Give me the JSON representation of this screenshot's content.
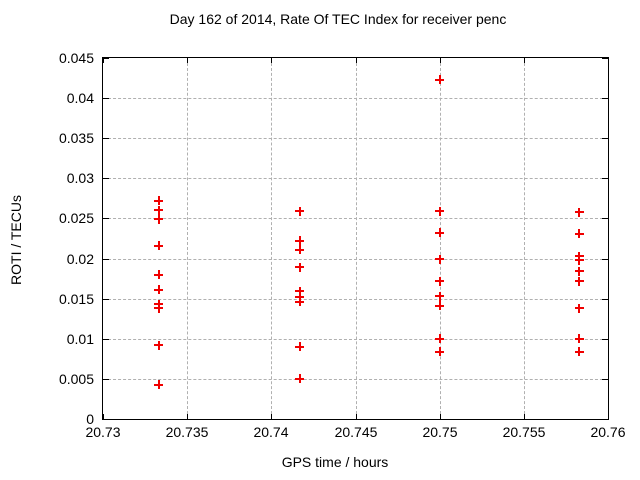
{
  "chart_data": {
    "type": "scatter",
    "title": "Day 162 of 2014, Rate Of TEC Index for receiver penc",
    "xlabel": "GPS time / hours",
    "ylabel": "ROTI / TECUs",
    "xlim": [
      20.73,
      20.76
    ],
    "ylim": [
      0,
      0.045
    ],
    "grid": true,
    "legend": false,
    "marker": "plus",
    "marker_color": "#f00000",
    "grid_color": "#b0b0b0",
    "axis_color": "#000000",
    "xticks": [
      {
        "value": 20.73,
        "label": "20.73"
      },
      {
        "value": 20.735,
        "label": "20.735"
      },
      {
        "value": 20.74,
        "label": "20.74"
      },
      {
        "value": 20.745,
        "label": "20.745"
      },
      {
        "value": 20.75,
        "label": "20.75"
      },
      {
        "value": 20.755,
        "label": "20.755"
      },
      {
        "value": 20.76,
        "label": "20.76"
      }
    ],
    "yticks": [
      {
        "value": 0,
        "label": "0"
      },
      {
        "value": 0.005,
        "label": "0.005"
      },
      {
        "value": 0.01,
        "label": "0.01"
      },
      {
        "value": 0.015,
        "label": "0.015"
      },
      {
        "value": 0.02,
        "label": "0.02"
      },
      {
        "value": 0.025,
        "label": "0.025"
      },
      {
        "value": 0.03,
        "label": "0.03"
      },
      {
        "value": 0.035,
        "label": "0.035"
      },
      {
        "value": 0.04,
        "label": "0.04"
      },
      {
        "value": 0.045,
        "label": "0.045"
      }
    ],
    "series": [
      {
        "name": "ROTI",
        "points": [
          [
            20.7333,
            0.0272
          ],
          [
            20.7333,
            0.026
          ],
          [
            20.7333,
            0.0249
          ],
          [
            20.7333,
            0.0216
          ],
          [
            20.7333,
            0.018
          ],
          [
            20.7333,
            0.0161
          ],
          [
            20.7333,
            0.0143
          ],
          [
            20.7333,
            0.0138
          ],
          [
            20.7333,
            0.0092
          ],
          [
            20.7333,
            0.0043
          ],
          [
            20.7417,
            0.0259
          ],
          [
            20.7417,
            0.0222
          ],
          [
            20.7417,
            0.0211
          ],
          [
            20.7417,
            0.0189
          ],
          [
            20.7417,
            0.0159
          ],
          [
            20.7417,
            0.0152
          ],
          [
            20.7417,
            0.0146
          ],
          [
            20.7417,
            0.009
          ],
          [
            20.7417,
            0.005
          ],
          [
            20.75,
            0.0423
          ],
          [
            20.75,
            0.0259
          ],
          [
            20.75,
            0.0232
          ],
          [
            20.75,
            0.0199
          ],
          [
            20.75,
            0.0172
          ],
          [
            20.75,
            0.0153
          ],
          [
            20.75,
            0.0141
          ],
          [
            20.75,
            0.01
          ],
          [
            20.75,
            0.0084
          ],
          [
            20.7583,
            0.0258
          ],
          [
            20.7583,
            0.0231
          ],
          [
            20.7583,
            0.0203
          ],
          [
            20.7583,
            0.0198
          ],
          [
            20.7583,
            0.0184
          ],
          [
            20.7583,
            0.0172
          ],
          [
            20.7583,
            0.0138
          ],
          [
            20.7583,
            0.01
          ],
          [
            20.7583,
            0.0084
          ]
        ]
      }
    ]
  }
}
